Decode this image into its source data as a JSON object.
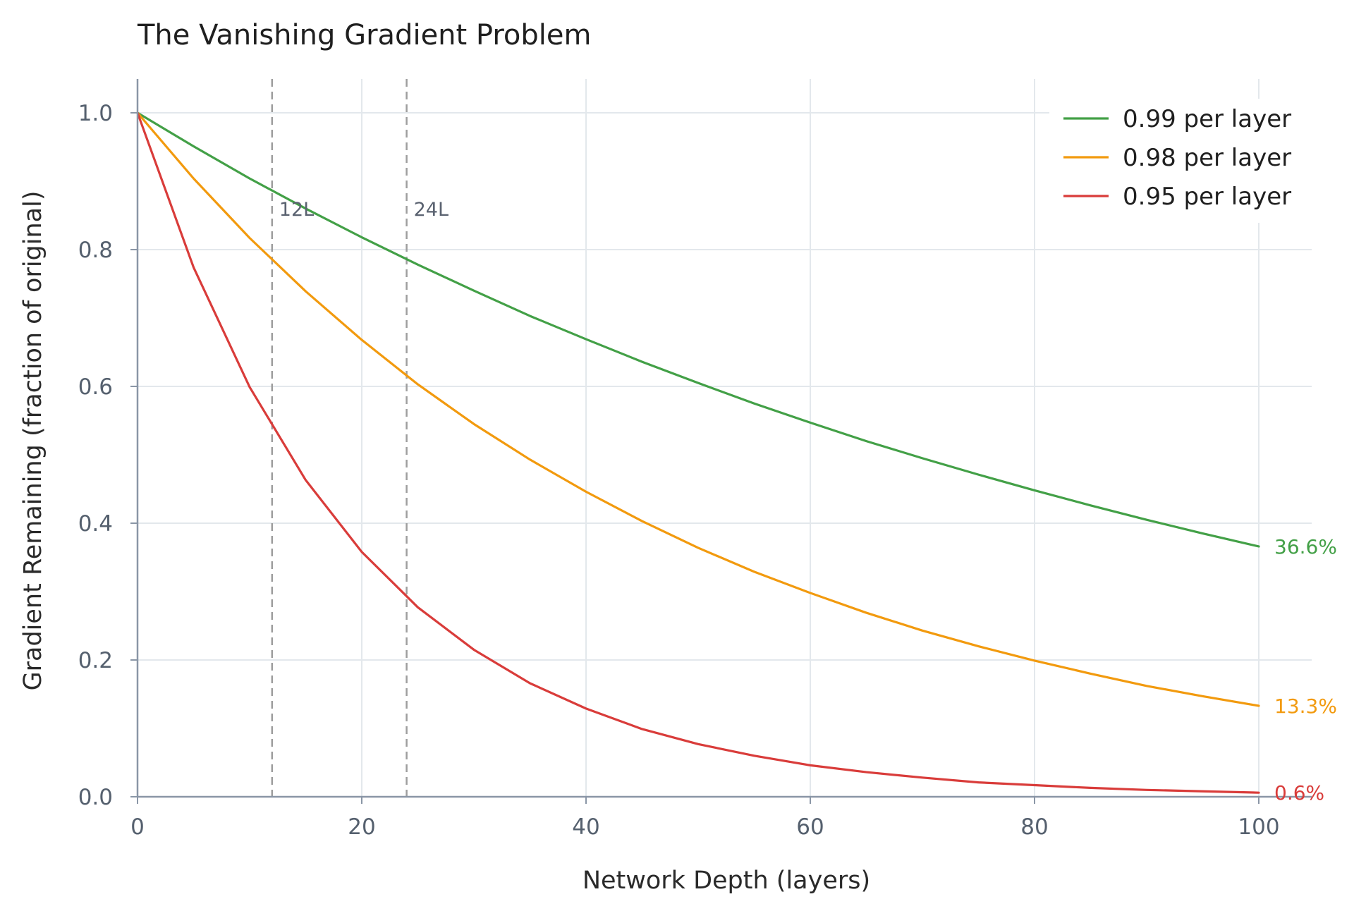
{
  "chart_data": {
    "type": "line",
    "title": "The Vanishing Gradient Problem",
    "xlabel": "Network Depth (layers)",
    "ylabel": "Gradient Remaining (fraction of original)",
    "xlim": [
      0,
      100
    ],
    "ylim": [
      0.0,
      1.0
    ],
    "x_ticks": [
      0,
      20,
      40,
      60,
      80,
      100
    ],
    "y_ticks": [
      0.0,
      0.2,
      0.4,
      0.6,
      0.8,
      1.0
    ],
    "x_tick_labels": [
      "0",
      "20",
      "40",
      "60",
      "80",
      "100"
    ],
    "y_tick_labels": [
      "0.0",
      "0.2",
      "0.4",
      "0.6",
      "0.8",
      "1.0"
    ],
    "grid": true,
    "legend_position": "top-right",
    "series": [
      {
        "name": "0.99 per layer",
        "color": "#43a047",
        "x": [
          0,
          5,
          10,
          15,
          20,
          25,
          30,
          35,
          40,
          45,
          50,
          55,
          60,
          65,
          70,
          75,
          80,
          85,
          90,
          95,
          100
        ],
        "y": [
          1.0,
          0.951,
          0.904,
          0.86,
          0.818,
          0.778,
          0.74,
          0.703,
          0.669,
          0.636,
          0.605,
          0.575,
          0.547,
          0.52,
          0.495,
          0.471,
          0.448,
          0.426,
          0.405,
          0.385,
          0.366
        ],
        "end_label": "36.6%"
      },
      {
        "name": "0.98 per layer",
        "color": "#f29a0e",
        "x": [
          0,
          5,
          10,
          15,
          20,
          25,
          30,
          35,
          40,
          45,
          50,
          55,
          60,
          65,
          70,
          75,
          80,
          85,
          90,
          95,
          100
        ],
        "y": [
          1.0,
          0.904,
          0.817,
          0.739,
          0.668,
          0.603,
          0.545,
          0.493,
          0.446,
          0.403,
          0.364,
          0.329,
          0.298,
          0.269,
          0.243,
          0.22,
          0.199,
          0.18,
          0.162,
          0.147,
          0.133
        ],
        "end_label": "13.3%"
      },
      {
        "name": "0.95 per layer",
        "color": "#d93c3a",
        "x": [
          0,
          5,
          10,
          15,
          20,
          25,
          30,
          35,
          40,
          45,
          50,
          55,
          60,
          65,
          70,
          75,
          80,
          85,
          90,
          95,
          100
        ],
        "y": [
          1.0,
          0.774,
          0.599,
          0.463,
          0.358,
          0.277,
          0.215,
          0.166,
          0.129,
          0.099,
          0.077,
          0.06,
          0.046,
          0.036,
          0.028,
          0.021,
          0.017,
          0.013,
          0.01,
          0.008,
          0.006
        ],
        "end_label": "0.6%"
      }
    ],
    "annotations": [
      {
        "x": 12,
        "label": "12L",
        "style": "dashed-vertical",
        "color": "#9e9e9e"
      },
      {
        "x": 24,
        "label": "24L",
        "style": "dashed-vertical",
        "color": "#9e9e9e"
      }
    ],
    "colors": {
      "axis": "#8a96a6",
      "grid": "#e3e8ec",
      "tick_text": "#55606e",
      "annotation_text": "#5a6270"
    }
  }
}
